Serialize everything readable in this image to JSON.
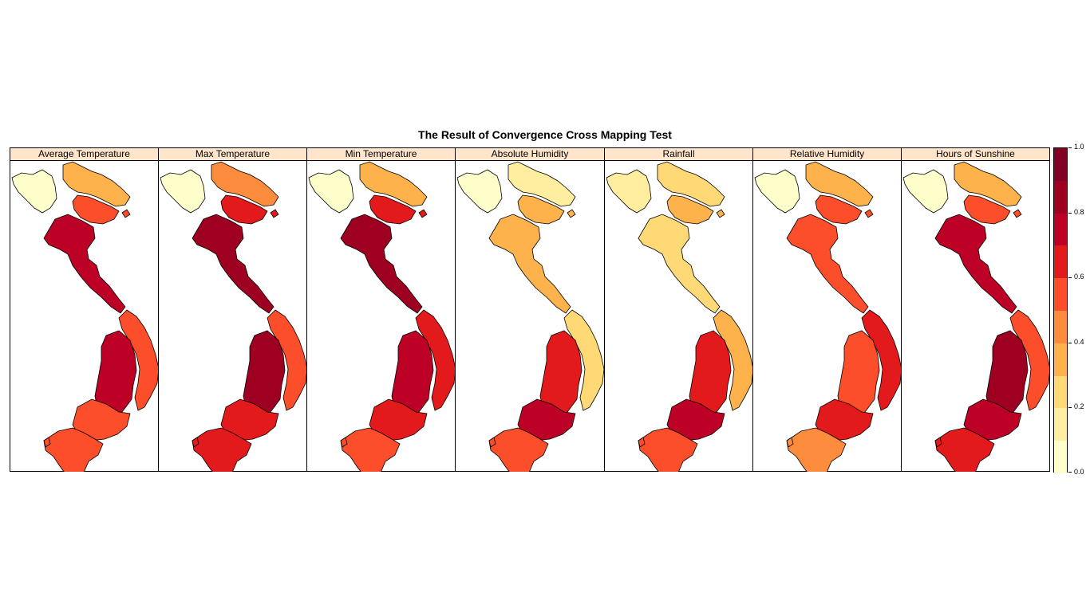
{
  "title": "The Result of Convergence Cross Mapping Test",
  "legend": {
    "labels": [
      "0.0",
      "0.2",
      "0.4",
      "0.6",
      "0.8",
      "1.0"
    ],
    "colors": [
      "#FFFFCC",
      "#FFEDA0",
      "#FED976",
      "#FEB24C",
      "#FD8D3C",
      "#FC4E2A",
      "#E31A1C",
      "#BD0026",
      "#9E0021",
      "#800026"
    ]
  },
  "chart_data": {
    "type": "heatmap",
    "title": "The Result of Convergence Cross Mapping Test",
    "scale_range": [
      0,
      1
    ],
    "scale_breaks": [
      0.0,
      0.1,
      0.2,
      0.3,
      0.4,
      0.5,
      0.6,
      0.7,
      0.8,
      0.9,
      1.0
    ],
    "no_data_color": "#FFFFFF",
    "regions": [
      "north-west",
      "north-east",
      "red-river-delta",
      "north-central",
      "central-coast",
      "central-highlands",
      "south-east",
      "mekong-delta"
    ],
    "panels": [
      {
        "name": "Average Temperature",
        "values": [
          0.05,
          0.35,
          0.55,
          0.75,
          0.55,
          0.75,
          0.55,
          0.5
        ]
      },
      {
        "name": "Max Temperature",
        "values": [
          0.05,
          0.4,
          0.6,
          0.85,
          0.55,
          0.8,
          0.65,
          0.65
        ]
      },
      {
        "name": "Min Temperature",
        "values": [
          0.05,
          0.35,
          0.6,
          0.85,
          0.65,
          0.75,
          0.65,
          0.55
        ]
      },
      {
        "name": "Absolute Humidity",
        "values": [
          0.05,
          0.15,
          0.35,
          0.35,
          0.25,
          0.65,
          0.75,
          0.55
        ]
      },
      {
        "name": "Rainfall",
        "values": [
          0.15,
          0.25,
          0.3,
          0.2,
          0.35,
          0.65,
          0.75,
          0.55
        ]
      },
      {
        "name": "Relative Humidity",
        "values": [
          0.05,
          0.35,
          0.5,
          0.55,
          0.6,
          0.55,
          0.65,
          0.45
        ]
      },
      {
        "name": "Hours of Sunshine",
        "values": [
          0.05,
          0.35,
          0.55,
          0.75,
          0.55,
          0.85,
          0.75,
          0.65
        ]
      }
    ]
  }
}
